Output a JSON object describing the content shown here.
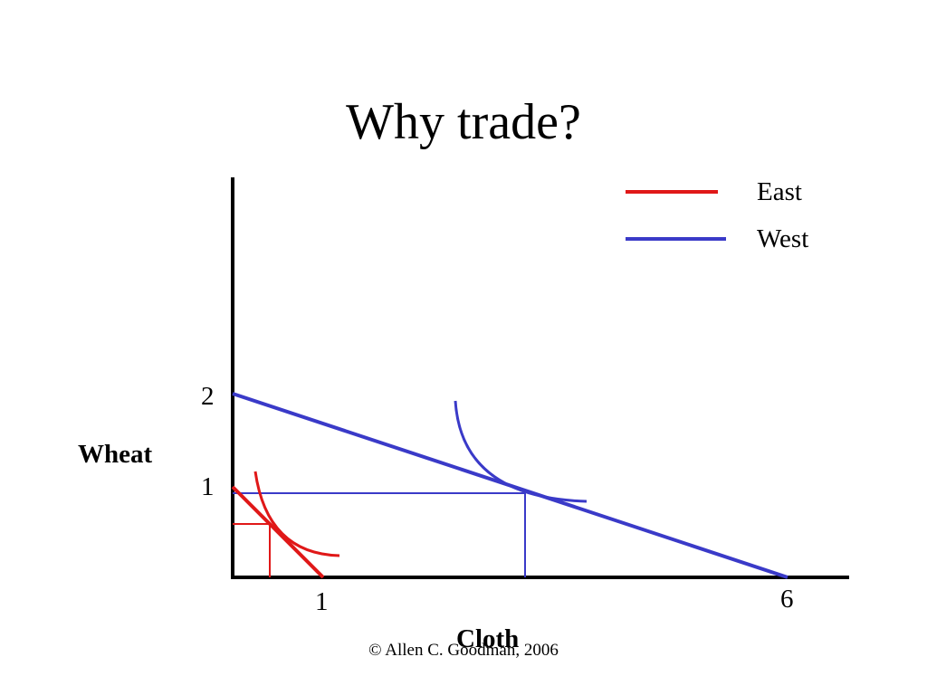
{
  "title": "Why trade?",
  "legend": [
    {
      "label": "East",
      "color": "#e01818"
    },
    {
      "label": "West",
      "color": "#3a3ac8"
    }
  ],
  "axes": {
    "y_label": "Wheat",
    "x_label": "Cloth",
    "y_ticks": [
      "2",
      "1"
    ],
    "x_ticks": [
      "1",
      "6"
    ]
  },
  "copyright": "© Allen C. Goodman, 2006",
  "chart_data": {
    "type": "line",
    "series": [
      {
        "name": "East",
        "color": "#e01818",
        "x": [
          0,
          1
        ],
        "y": [
          1,
          0
        ],
        "tangency": {
          "x": 0.4,
          "y": 0.6
        }
      },
      {
        "name": "West",
        "color": "#3a3ac8",
        "x": [
          0,
          6
        ],
        "y": [
          2,
          0
        ],
        "tangency": {
          "x": 3.2,
          "y": 0.93
        }
      }
    ],
    "xlabel": "Cloth",
    "ylabel": "Wheat",
    "xlim": [
      0,
      6.7
    ],
    "ylim": [
      0,
      4.4
    ]
  }
}
